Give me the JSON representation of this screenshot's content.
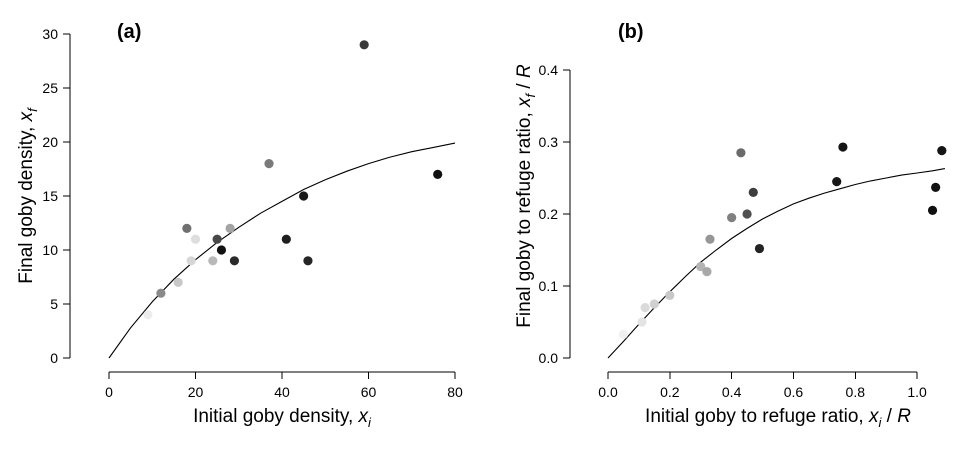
{
  "chart_data": [
    {
      "type": "scatter",
      "panel_label": "(a)",
      "xlabel": {
        "text": "Initial goby density,",
        "var": "x",
        "sub": "i"
      },
      "ylabel": {
        "text": "Final goby density,",
        "var": "x",
        "sub": "f"
      },
      "xlim": [
        0,
        80
      ],
      "ylim": [
        0,
        30
      ],
      "xticks": [
        "0",
        "20",
        "40",
        "60",
        "80"
      ],
      "yticks": [
        "0",
        "5",
        "10",
        "15",
        "20",
        "25",
        "30"
      ],
      "grid": false,
      "points": [
        {
          "x": 9,
          "y": 4,
          "shade": "#ececec"
        },
        {
          "x": 12,
          "y": 6,
          "shade": "#8a8a8a"
        },
        {
          "x": 16,
          "y": 7,
          "shade": "#c8c8c8"
        },
        {
          "x": 18,
          "y": 12,
          "shade": "#707070"
        },
        {
          "x": 19,
          "y": 9,
          "shade": "#d6d6d6"
        },
        {
          "x": 20,
          "y": 11,
          "shade": "#dedede"
        },
        {
          "x": 24,
          "y": 9,
          "shade": "#b8b8b8"
        },
        {
          "x": 25,
          "y": 11,
          "shade": "#484848"
        },
        {
          "x": 26,
          "y": 10,
          "shade": "#111111"
        },
        {
          "x": 28,
          "y": 12,
          "shade": "#a4a4a4"
        },
        {
          "x": 29,
          "y": 9,
          "shade": "#2a2a2a"
        },
        {
          "x": 37,
          "y": 18,
          "shade": "#7a7a7a"
        },
        {
          "x": 41,
          "y": 11,
          "shade": "#1e1e1e"
        },
        {
          "x": 45,
          "y": 15,
          "shade": "#181818"
        },
        {
          "x": 46,
          "y": 9,
          "shade": "#262626"
        },
        {
          "x": 59,
          "y": 29,
          "shade": "#3a3a3a"
        },
        {
          "x": 76,
          "y": 17,
          "shade": "#111111"
        }
      ],
      "fit_curve": [
        [
          0,
          0
        ],
        [
          5,
          2.8
        ],
        [
          10,
          5.2
        ],
        [
          15,
          7.3
        ],
        [
          20,
          9.1
        ],
        [
          25,
          10.7
        ],
        [
          30,
          12.1
        ],
        [
          35,
          13.4
        ],
        [
          40,
          14.5
        ],
        [
          45,
          15.6
        ],
        [
          50,
          16.5
        ],
        [
          55,
          17.3
        ],
        [
          60,
          18.0
        ],
        [
          65,
          18.6
        ],
        [
          70,
          19.1
        ],
        [
          75,
          19.5
        ],
        [
          80,
          19.9
        ]
      ]
    },
    {
      "type": "scatter",
      "panel_label": "(b)",
      "xlabel": {
        "text": "Initial goby to refuge ratio,",
        "var": "x",
        "sub": "i",
        "denom": "R"
      },
      "ylabel": {
        "text": "Final goby to refuge ratio,",
        "var": "x",
        "sub": "f",
        "denom": "R"
      },
      "xlim": [
        0,
        1.1
      ],
      "ylim": [
        0,
        0.45
      ],
      "xticks": [
        "0.0",
        "0.2",
        "0.4",
        "0.6",
        "0.8",
        "1.0"
      ],
      "yticks": [
        "0.0",
        "0.1",
        "0.2",
        "0.3",
        "0.4"
      ],
      "grid": false,
      "points": [
        {
          "x": 0.05,
          "y": 0.033,
          "shade": "#f0f0f0"
        },
        {
          "x": 0.11,
          "y": 0.05,
          "shade": "#e4e4e4"
        },
        {
          "x": 0.12,
          "y": 0.07,
          "shade": "#dadada"
        },
        {
          "x": 0.15,
          "y": 0.075,
          "shade": "#d0d0d0"
        },
        {
          "x": 0.2,
          "y": 0.087,
          "shade": "#c8c8c8"
        },
        {
          "x": 0.3,
          "y": 0.127,
          "shade": "#b4b4b4"
        },
        {
          "x": 0.32,
          "y": 0.12,
          "shade": "#a8a8a8"
        },
        {
          "x": 0.33,
          "y": 0.165,
          "shade": "#969696"
        },
        {
          "x": 0.4,
          "y": 0.195,
          "shade": "#808080"
        },
        {
          "x": 0.43,
          "y": 0.285,
          "shade": "#6a6a6a"
        },
        {
          "x": 0.45,
          "y": 0.2,
          "shade": "#505050"
        },
        {
          "x": 0.47,
          "y": 0.23,
          "shade": "#3e3e3e"
        },
        {
          "x": 0.49,
          "y": 0.152,
          "shade": "#242424"
        },
        {
          "x": 0.74,
          "y": 0.245,
          "shade": "#181818"
        },
        {
          "x": 0.76,
          "y": 0.293,
          "shade": "#141414"
        },
        {
          "x": 1.05,
          "y": 0.205,
          "shade": "#101010"
        },
        {
          "x": 1.06,
          "y": 0.237,
          "shade": "#121212"
        },
        {
          "x": 1.08,
          "y": 0.288,
          "shade": "#141414"
        }
      ],
      "fit_curve": [
        [
          0,
          0
        ],
        [
          0.05,
          0.023
        ],
        [
          0.1,
          0.047
        ],
        [
          0.15,
          0.07
        ],
        [
          0.2,
          0.092
        ],
        [
          0.25,
          0.113
        ],
        [
          0.3,
          0.133
        ],
        [
          0.35,
          0.15
        ],
        [
          0.4,
          0.166
        ],
        [
          0.45,
          0.18
        ],
        [
          0.5,
          0.193
        ],
        [
          0.55,
          0.204
        ],
        [
          0.6,
          0.214
        ],
        [
          0.65,
          0.222
        ],
        [
          0.7,
          0.229
        ],
        [
          0.75,
          0.235
        ],
        [
          0.8,
          0.241
        ],
        [
          0.85,
          0.246
        ],
        [
          0.9,
          0.25
        ],
        [
          0.95,
          0.254
        ],
        [
          1.0,
          0.257
        ],
        [
          1.05,
          0.26
        ],
        [
          1.09,
          0.263
        ]
      ]
    }
  ]
}
